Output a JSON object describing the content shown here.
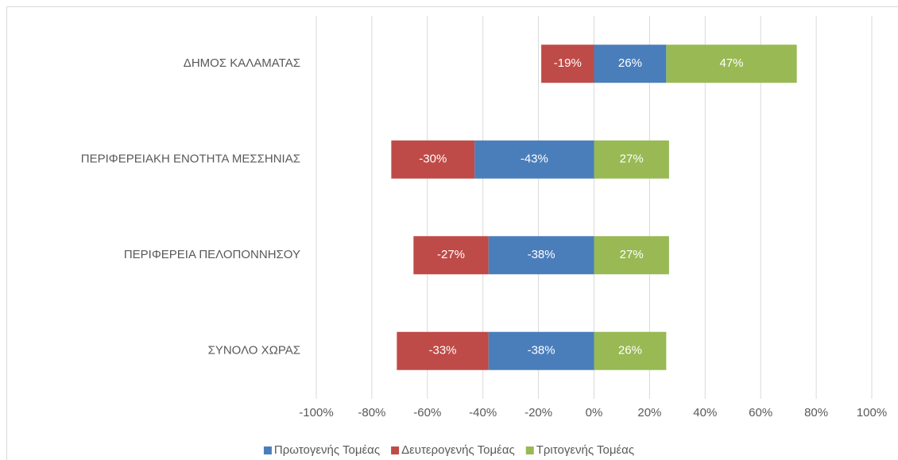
{
  "chart_data": {
    "type": "stacked-bar-horizontal",
    "categories": [
      "ΔΗΜΟΣ ΚΑΛΑΜΑΤΑΣ",
      "ΠΕΡΙΦΕΡΕΙΑΚΗ ΕΝΟΤΗΤΑ ΜΕΣΣΗΝΙΑΣ",
      "ΠΕΡΙΦΕΡΕΙΑ ΠΕΛΟΠΟΝΝΗΣΟΥ",
      "ΣΥΝΟΛΟ ΧΩΡΑΣ"
    ],
    "series": [
      {
        "name": "Πρωτογενής Τομέας",
        "color": "#4a7ebb",
        "values": [
          26,
          -43,
          -38,
          -38
        ],
        "value_labels": [
          "26%",
          "-43%",
          "-38%",
          "-38%"
        ]
      },
      {
        "name": "Δευτερογενής Τομέας",
        "color": "#be4b48",
        "values": [
          -19,
          -30,
          -27,
          -33
        ],
        "value_labels": [
          "-19%",
          "-30%",
          "-27%",
          "-33%"
        ]
      },
      {
        "name": "Τριτογενής Τομέας",
        "color": "#98b954",
        "values": [
          47,
          27,
          27,
          26
        ],
        "value_labels": [
          "47%",
          "27%",
          "27%",
          "26%"
        ]
      }
    ],
    "xlim": [
      -100,
      100
    ],
    "xticks": [
      {
        "value": -100,
        "label": "-100%"
      },
      {
        "value": -80,
        "label": "-80%"
      },
      {
        "value": -60,
        "label": "-60%"
      },
      {
        "value": -40,
        "label": "-40%"
      },
      {
        "value": -20,
        "label": "-20%"
      },
      {
        "value": 0,
        "label": "0%"
      },
      {
        "value": 20,
        "label": "20%"
      },
      {
        "value": 40,
        "label": "40%"
      },
      {
        "value": 60,
        "label": "60%"
      },
      {
        "value": 80,
        "label": "80%"
      },
      {
        "value": 100,
        "label": "100%"
      }
    ],
    "grid": true,
    "legend": "bottom"
  }
}
